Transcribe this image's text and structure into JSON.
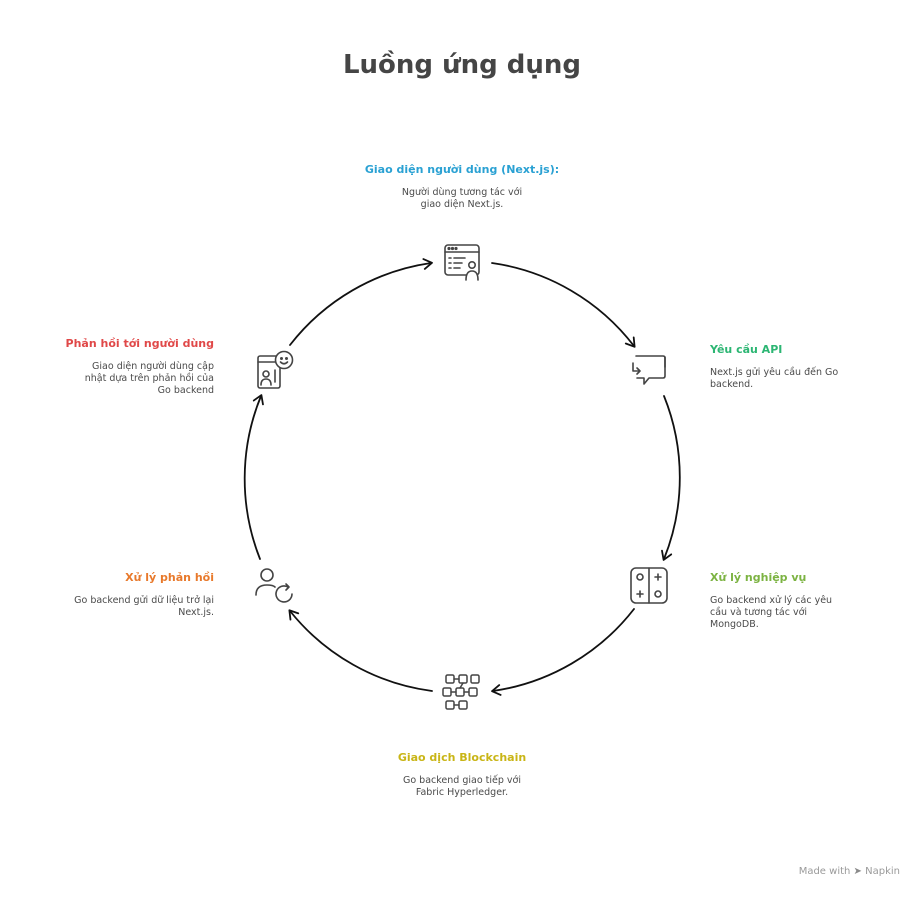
{
  "title": "Luồng ứng dụng",
  "nodes": [
    {
      "icon": "browser-user-icon",
      "title": "Giao diện người dùng (Next.js):",
      "description": "Người dùng tương tác với giao diện Next.js.",
      "color": "#2aa1d3"
    },
    {
      "icon": "chat-exchange-icon",
      "title": "Yêu cầu API",
      "description": "Next.js gửi yêu cầu đến Go backend.",
      "color": "#2cb673"
    },
    {
      "icon": "controller-icon",
      "title": "Xử lý nghiệp vụ",
      "description": "Go backend xử lý các yêu cầu và tương tác với MongoDB.",
      "color": "#7cb342"
    },
    {
      "icon": "blockchain-blocks-icon",
      "title": "Giao dịch Blockchain",
      "description": "Go backend giao tiếp với Fabric Hyperledger.",
      "color": "#c9b516"
    },
    {
      "icon": "user-refresh-icon",
      "title": "Xử lý phản hồi",
      "description": "Go backend gửi dữ liệu trở lại Next.js.",
      "color": "#e8792b"
    },
    {
      "icon": "feedback-user-icon",
      "title": "Phản hồi tới người dùng",
      "description": "Giao diện người dùng cập nhật dựa trên phản hồi của Go backend",
      "color": "#e04848"
    }
  ],
  "footer": {
    "made_with": "Made with",
    "brand": "Napkin"
  }
}
